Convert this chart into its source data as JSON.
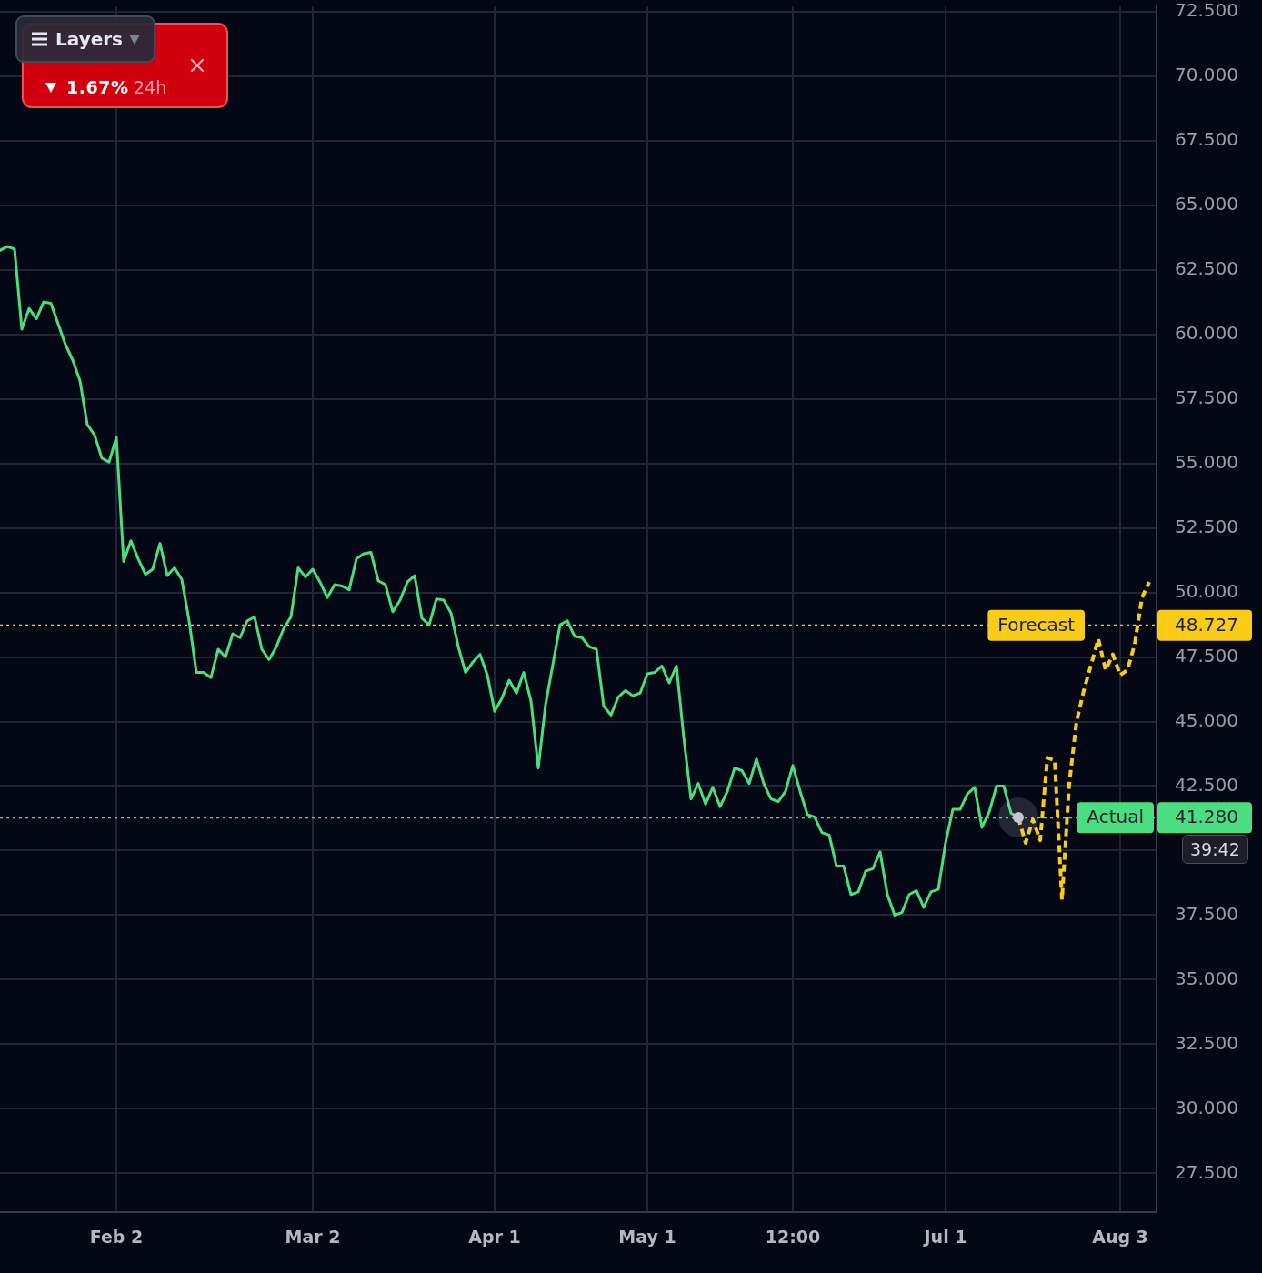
{
  "chart_data": {
    "type": "line",
    "categories": [
      null,
      null,
      null,
      null,
      null,
      null,
      null,
      null,
      null,
      null,
      null,
      null,
      null,
      null,
      null,
      null,
      "Feb 2",
      null,
      null,
      null,
      null,
      null,
      null,
      null,
      null,
      null,
      null,
      null,
      null,
      null,
      null,
      null,
      null,
      null,
      null,
      null,
      null,
      null,
      null,
      null,
      null,
      null,
      null,
      "Mar 2",
      null,
      null,
      null,
      null,
      null,
      null,
      null,
      null,
      null,
      null,
      null,
      null,
      null,
      null,
      null,
      null,
      null,
      null,
      null,
      null,
      null,
      null,
      null,
      null,
      "Apr 1",
      null,
      null,
      null,
      null,
      null,
      null,
      null,
      null,
      null,
      null,
      null,
      null,
      null,
      null,
      null,
      null,
      null,
      null,
      null,
      null,
      "May 1",
      null,
      null,
      null,
      null,
      null,
      null,
      null,
      null,
      null,
      null,
      null,
      null,
      null,
      null,
      null,
      null,
      null,
      null,
      null,
      "12:00",
      null,
      null,
      null,
      null,
      null,
      null,
      null,
      null,
      null,
      null,
      null,
      null,
      null,
      null,
      null,
      null,
      null,
      null,
      null,
      null,
      "Jul 1",
      null,
      null,
      null,
      null,
      null,
      null,
      null,
      null,
      null,
      null,
      null,
      null,
      null,
      null,
      null,
      null,
      null,
      null,
      null,
      null,
      null,
      null,
      null,
      "Aug 3",
      null,
      null,
      null,
      null,
      null
    ],
    "series": [
      {
        "color": "#4ade80",
        "line_style": "solid",
        "values": [
          63.25,
          63.4,
          63.3,
          60.2,
          61.0,
          60.6,
          61.25,
          61.2,
          60.4,
          59.6,
          59.0,
          58.2,
          56.5,
          56.1,
          55.2,
          55.05,
          56.0,
          51.2,
          52.0,
          51.3,
          50.7,
          50.9,
          51.9,
          50.65,
          50.95,
          50.5,
          48.9,
          46.9,
          46.9,
          46.7,
          47.8,
          47.5,
          48.4,
          48.25,
          48.9,
          49.05,
          47.8,
          47.4,
          47.9,
          48.6,
          49.05,
          50.95,
          50.6,
          50.9,
          50.4,
          49.8,
          50.3,
          50.25,
          50.1,
          51.3,
          51.5,
          51.55,
          50.45,
          50.3,
          49.25,
          49.7,
          50.4,
          50.65,
          49.0,
          48.75,
          49.75,
          49.7,
          49.2,
          47.9,
          46.9,
          47.3,
          47.6,
          46.8,
          45.4,
          45.9,
          46.6,
          46.1,
          46.9,
          45.8,
          43.2,
          45.65,
          47.2,
          48.75,
          48.9,
          48.3,
          48.25,
          47.9,
          47.8,
          45.6,
          45.25,
          45.95,
          46.2,
          46.0,
          46.1,
          46.85,
          46.9,
          47.15,
          46.5,
          47.15,
          44.4,
          42.0,
          42.6,
          41.8,
          42.45,
          41.7,
          42.3,
          43.2,
          43.1,
          42.6,
          43.55,
          42.6,
          42.0,
          41.9,
          42.3,
          43.3,
          42.3,
          41.4,
          41.3,
          40.7,
          40.6,
          39.4,
          39.4,
          38.3,
          38.4,
          39.2,
          39.3,
          39.95,
          38.3,
          37.5,
          37.6,
          38.3,
          38.45,
          37.8,
          38.4,
          38.5,
          40.3,
          41.6,
          41.6,
          42.2,
          42.45,
          40.9,
          41.5,
          42.5,
          42.5,
          41.45,
          41.28,
          null,
          null,
          null,
          null,
          null,
          null,
          null,
          null,
          null,
          null,
          null,
          null,
          null,
          null,
          null,
          null,
          null,
          null,
          null
        ]
      },
      {
        "color": "#facc15",
        "line_style": "dashed",
        "values": [
          null,
          null,
          null,
          null,
          null,
          null,
          null,
          null,
          null,
          null,
          null,
          null,
          null,
          null,
          null,
          null,
          null,
          null,
          null,
          null,
          null,
          null,
          null,
          null,
          null,
          null,
          null,
          null,
          null,
          null,
          null,
          null,
          null,
          null,
          null,
          null,
          null,
          null,
          null,
          null,
          null,
          null,
          null,
          null,
          null,
          null,
          null,
          null,
          null,
          null,
          null,
          null,
          null,
          null,
          null,
          null,
          null,
          null,
          null,
          null,
          null,
          null,
          null,
          null,
          null,
          null,
          null,
          null,
          null,
          null,
          null,
          null,
          null,
          null,
          null,
          null,
          null,
          null,
          null,
          null,
          null,
          null,
          null,
          null,
          null,
          null,
          null,
          null,
          null,
          null,
          null,
          null,
          null,
          null,
          null,
          null,
          null,
          null,
          null,
          null,
          null,
          null,
          null,
          null,
          null,
          null,
          null,
          null,
          null,
          null,
          null,
          null,
          null,
          null,
          null,
          null,
          null,
          null,
          null,
          null,
          null,
          null,
          null,
          null,
          null,
          null,
          null,
          null,
          null,
          null,
          null,
          null,
          null,
          null,
          null,
          null,
          null,
          null,
          null,
          null,
          41.28,
          40.3,
          41.2,
          40.4,
          43.6,
          43.5,
          38.1,
          42.6,
          45.0,
          46.2,
          47.2,
          48.2,
          47.0,
          47.6,
          46.8,
          47.0,
          48.0,
          49.8,
          50.4,
          null
        ]
      }
    ],
    "ylim": [
      26.0,
      72.7
    ],
    "yticks": [
      {
        "value": 27.5,
        "label": "27.500"
      },
      {
        "value": 30,
        "label": "30.000"
      },
      {
        "value": 32.5,
        "label": "32.500"
      },
      {
        "value": 35,
        "label": "35.000"
      },
      {
        "value": 37.5,
        "label": "37.500"
      },
      {
        "value": 40,
        "label": null
      },
      {
        "value": 42.5,
        "label": "42.500"
      },
      {
        "value": 45,
        "label": "45.000"
      },
      {
        "value": 47.5,
        "label": "47.500"
      },
      {
        "value": 50,
        "label": "50.000"
      },
      {
        "value": 52.5,
        "label": "52.500"
      },
      {
        "value": 55,
        "label": "55.000"
      },
      {
        "value": 57.5,
        "label": "57.500"
      },
      {
        "value": 60,
        "label": "60.000"
      },
      {
        "value": 62.5,
        "label": "62.500"
      },
      {
        "value": 65,
        "label": "65.000"
      },
      {
        "value": 67.5,
        "label": "67.500"
      },
      {
        "value": 70,
        "label": "70.000"
      },
      {
        "value": 72.5,
        "label": "72.500"
      }
    ],
    "ref_lines": [
      {
        "axis": "y",
        "value": 48.727,
        "label": "Forecast",
        "color": "#facc15",
        "line_style": "dotted"
      },
      {
        "axis": "y",
        "value": 41.28,
        "label": "Actual",
        "color": "#4ade80",
        "line_style": "dotted"
      }
    ],
    "annotations": [
      "48.727",
      "41.280",
      "Layers",
      "1.67%",
      "24h",
      "39:42"
    ],
    "grid": true,
    "legend": false,
    "marker": "none"
  }
}
